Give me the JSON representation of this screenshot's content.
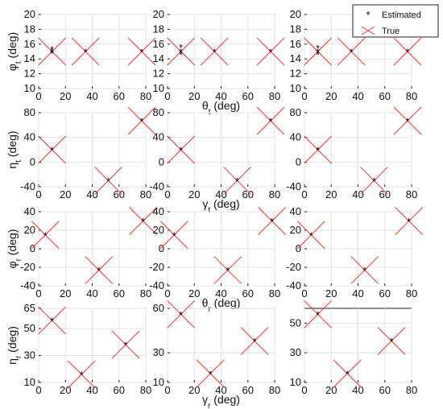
{
  "legend": {
    "estimated": "Estimated",
    "true": "True",
    "placement": "top-right"
  },
  "colors": {
    "true_marker": "#ff3030",
    "estimated_marker": "#000000",
    "axes": "#222222"
  },
  "chart_data": [
    {
      "type": "scatter",
      "row": 0,
      "col": 0,
      "ylabel": "φt (deg)",
      "xlabel": "",
      "xlim": [
        0,
        80
      ],
      "ylim": [
        10,
        20
      ],
      "xticks": [
        0,
        20,
        40,
        60,
        80
      ],
      "yticks": [
        10,
        12,
        14,
        16,
        18,
        20
      ],
      "true": {
        "x": [
          10,
          35,
          77
        ],
        "y": [
          15,
          15,
          15
        ]
      },
      "estimated": {
        "x": [
          10,
          10,
          10,
          35,
          77
        ],
        "y": [
          15.3,
          14.8,
          15,
          15,
          15
        ]
      }
    },
    {
      "type": "scatter",
      "row": 0,
      "col": 1,
      "ylabel": "",
      "xlabel": "θt (deg)",
      "xlim": [
        0,
        80
      ],
      "ylim": [
        10,
        20
      ],
      "xticks": [
        0,
        20,
        40,
        60,
        80
      ],
      "yticks": [
        10,
        12,
        14,
        16,
        18,
        20
      ],
      "true": {
        "x": [
          10,
          35,
          77
        ],
        "y": [
          15,
          15,
          15
        ]
      },
      "estimated": {
        "x": [
          10,
          10,
          10,
          35,
          77
        ],
        "y": [
          15.6,
          14.6,
          15,
          15,
          15
        ]
      }
    },
    {
      "type": "scatter",
      "row": 0,
      "col": 2,
      "ylabel": "",
      "xlabel": "",
      "xlim": [
        0,
        80
      ],
      "ylim": [
        10,
        20
      ],
      "xticks": [
        0,
        20,
        40,
        60,
        80
      ],
      "yticks": [
        10,
        12,
        14,
        16,
        18,
        20
      ],
      "true": {
        "x": [
          10,
          35,
          77
        ],
        "y": [
          15,
          15,
          15
        ]
      },
      "estimated": {
        "x": [
          10,
          10,
          10,
          35,
          77
        ],
        "y": [
          15.5,
          14.6,
          15,
          15,
          15
        ]
      }
    },
    {
      "type": "scatter",
      "row": 1,
      "col": 0,
      "ylabel": "ηt (deg)",
      "xlabel": "",
      "xlim": [
        0,
        80
      ],
      "ylim": [
        -40,
        80
      ],
      "xticks": [
        0,
        20,
        40,
        60,
        80
      ],
      "yticks": [
        -40,
        0,
        40,
        80
      ],
      "true": {
        "x": [
          10,
          52,
          77
        ],
        "y": [
          20,
          -30,
          67
        ]
      },
      "estimated": {
        "x": [
          10,
          52,
          77
        ],
        "y": [
          20,
          -30,
          67
        ]
      }
    },
    {
      "type": "scatter",
      "row": 1,
      "col": 1,
      "ylabel": "",
      "xlabel": "γt (deg)",
      "xlim": [
        0,
        80
      ],
      "ylim": [
        -40,
        80
      ],
      "xticks": [
        0,
        20,
        40,
        60,
        80
      ],
      "yticks": [
        -40,
        0,
        40,
        80
      ],
      "true": {
        "x": [
          10,
          52,
          77
        ],
        "y": [
          20,
          -30,
          67
        ]
      },
      "estimated": {
        "x": [
          10,
          52,
          77
        ],
        "y": [
          20,
          -30,
          67
        ]
      }
    },
    {
      "type": "scatter",
      "row": 1,
      "col": 2,
      "ylabel": "",
      "xlabel": "",
      "xlim": [
        0,
        80
      ],
      "ylim": [
        -40,
        80
      ],
      "xticks": [
        0,
        20,
        40,
        60,
        80
      ],
      "yticks": [
        -40,
        0,
        40,
        80
      ],
      "true": {
        "x": [
          10,
          52,
          77
        ],
        "y": [
          20,
          -30,
          67
        ]
      },
      "estimated": {
        "x": [
          10,
          52,
          77
        ],
        "y": [
          20,
          -30,
          67
        ]
      }
    },
    {
      "type": "scatter",
      "row": 2,
      "col": 0,
      "ylabel": "φr (deg)",
      "xlabel": "",
      "xlim": [
        0,
        80
      ],
      "ylim": [
        -40,
        40
      ],
      "xticks": [
        0,
        20,
        40,
        60,
        80
      ],
      "yticks": [
        -40,
        -20,
        0,
        20,
        40
      ],
      "true": {
        "x": [
          5,
          45,
          78
        ],
        "y": [
          15,
          -23,
          30
        ]
      },
      "estimated": {
        "x": [
          5,
          45,
          78
        ],
        "y": [
          15,
          -23,
          30
        ]
      }
    },
    {
      "type": "scatter",
      "row": 2,
      "col": 1,
      "ylabel": "",
      "xlabel": "θr (deg)",
      "xlim": [
        0,
        80
      ],
      "ylim": [
        -40,
        40
      ],
      "xticks": [
        0,
        20,
        40,
        60,
        80
      ],
      "yticks": [
        -40,
        -20,
        0,
        20,
        40
      ],
      "true": {
        "x": [
          5,
          45,
          78
        ],
        "y": [
          15,
          -23,
          30
        ]
      },
      "estimated": {
        "x": [
          5,
          45,
          78
        ],
        "y": [
          15,
          -23,
          30
        ]
      }
    },
    {
      "type": "scatter",
      "row": 2,
      "col": 2,
      "ylabel": "",
      "xlabel": "",
      "xlim": [
        0,
        80
      ],
      "ylim": [
        -40,
        40
      ],
      "xticks": [
        0,
        20,
        40,
        60,
        80
      ],
      "yticks": [
        -40,
        -20,
        0,
        20,
        40
      ],
      "true": {
        "x": [
          5,
          45,
          78
        ],
        "y": [
          15,
          -23,
          30
        ]
      },
      "estimated": {
        "x": [
          5,
          45,
          78
        ],
        "y": [
          15,
          -23,
          30
        ]
      }
    },
    {
      "type": "scatter",
      "row": 3,
      "col": 0,
      "ylabel": "ηr (deg)",
      "xlabel": "",
      "xlim": [
        0,
        80
      ],
      "ylim": [
        10,
        65
      ],
      "xticks": [
        0,
        20,
        40,
        60,
        80
      ],
      "yticks": [
        10,
        30,
        50,
        65
      ],
      "true": {
        "x": [
          10,
          32,
          65
        ],
        "y": [
          56,
          16,
          38
        ]
      },
      "estimated": {
        "x": [
          10,
          32,
          65
        ],
        "y": [
          56,
          16,
          38
        ]
      }
    },
    {
      "type": "scatter",
      "row": 3,
      "col": 1,
      "ylabel": "",
      "xlabel": "γr (deg)",
      "xlim": [
        0,
        80
      ],
      "ylim": [
        10,
        60
      ],
      "xticks": [
        0,
        20,
        40,
        60,
        80
      ],
      "yticks": [
        10,
        30,
        60
      ],
      "true": {
        "x": [
          10,
          32,
          65
        ],
        "y": [
          56,
          16,
          38
        ]
      },
      "estimated": {
        "x": [
          10,
          32,
          65
        ],
        "y": [
          56,
          16,
          38
        ]
      }
    },
    {
      "type": "scatter",
      "row": 3,
      "col": 2,
      "ylabel": "",
      "xlabel": "",
      "xlim": [
        0,
        80
      ],
      "ylim": [
        10,
        60
      ],
      "xticks": [
        0,
        20,
        40,
        60,
        80
      ],
      "yticks": [
        10,
        30,
        50
      ],
      "true": {
        "x": [
          10,
          32,
          65
        ],
        "y": [
          56,
          16,
          38
        ]
      },
      "estimated": {
        "x": [
          10,
          32,
          65
        ],
        "y": [
          56,
          16,
          38
        ]
      }
    }
  ]
}
